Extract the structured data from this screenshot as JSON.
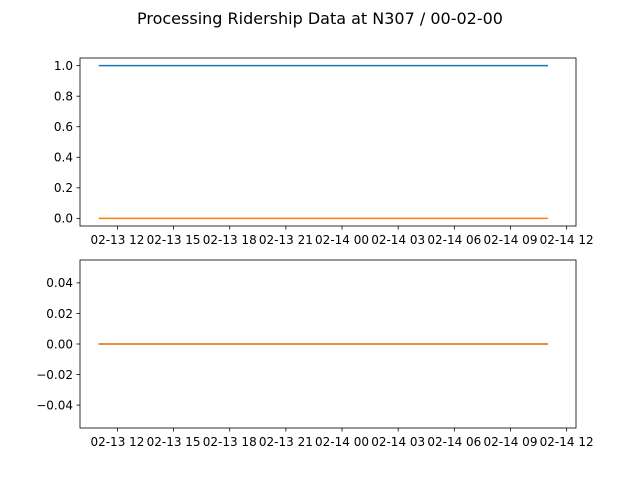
{
  "figure": {
    "title": "Processing Ridership Data at N307 / 00-02-00"
  },
  "chart_data": [
    {
      "type": "line",
      "x_ticks": [
        "02-13 12",
        "02-13 15",
        "02-13 18",
        "02-13 21",
        "02-14 00",
        "02-14 03",
        "02-14 06",
        "02-14 09",
        "02-14 12"
      ],
      "x": [
        "2024-02-13 11:00",
        "2024-02-14 11:00"
      ],
      "xlim": [
        "2024-02-13 10:00",
        "2024-02-14 12:30"
      ],
      "y_ticks": [
        "0.0",
        "0.2",
        "0.4",
        "0.6",
        "0.8",
        "1.0"
      ],
      "ylim": [
        -0.05,
        1.05
      ],
      "grid": false,
      "series": [
        {
          "values": [
            1.0,
            1.0
          ],
          "color": "#1f77b4"
        },
        {
          "values": [
            0.0,
            0.0
          ],
          "color": "#ff7f0e"
        }
      ]
    },
    {
      "type": "line",
      "x_ticks": [
        "02-13 12",
        "02-13 15",
        "02-13 18",
        "02-13 21",
        "02-14 00",
        "02-14 03",
        "02-14 06",
        "02-14 09",
        "02-14 12"
      ],
      "x": [
        "2024-02-13 11:00",
        "2024-02-14 11:00"
      ],
      "xlim": [
        "2024-02-13 10:00",
        "2024-02-14 12:30"
      ],
      "y_ticks": [
        "−0.04",
        "−0.02",
        "0.00",
        "0.02",
        "0.04"
      ],
      "ylim": [
        -0.055,
        0.055
      ],
      "grid": false,
      "series": [
        {
          "values": [
            0.0,
            0.0
          ],
          "color": "#1f77b4"
        },
        {
          "values": [
            0.0,
            0.0
          ],
          "color": "#ff7f0e"
        }
      ]
    }
  ]
}
